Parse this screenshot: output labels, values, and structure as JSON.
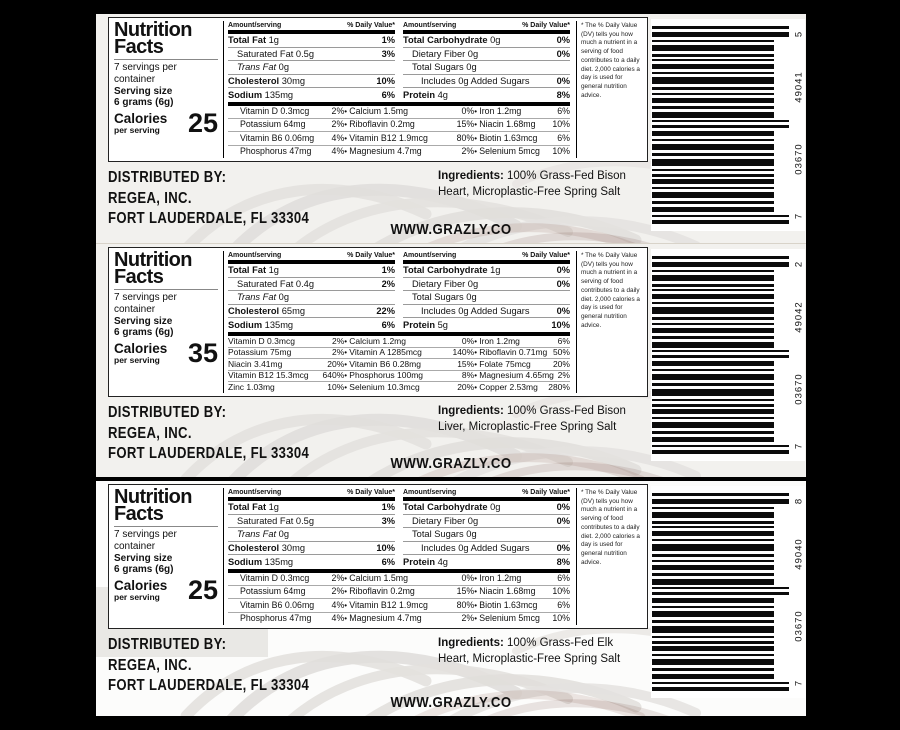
{
  "shared": {
    "website": "WWW.GRAZLY.CO",
    "distributor_lines": [
      "DISTRIBUTED BY:",
      "REGEA, INC.",
      "FORT LAUDERDALE, FL 33304"
    ],
    "ingredients_label": "Ingredients:",
    "footnote": "* The % Daily Value (DV) tells you how much a nutrient in a serving of food contributes to a daily diet. 2,000 calories a day is used for general nutrition advice.",
    "panel": {
      "title_line1": "Nutrition",
      "title_line2": "Facts",
      "servings": "7 servings per container",
      "serving_size_label": "Serving size",
      "serving_size_value": "6 grams (6g)",
      "calories_label": "Calories",
      "calories_sub": "per serving",
      "amount_header": "Amount/serving",
      "dv_header": "% Daily Value*"
    }
  },
  "colors": {
    "frame": "#000000",
    "strip_bg": "#f2f1ee",
    "strip3_bg": "#fcfcfb",
    "bar_color": "#0b0b0b"
  },
  "labels": [
    {
      "bg": "#f2f1ee",
      "calories": "25",
      "macros_left": [
        {
          "name": "Total Fat",
          "amount": "1g",
          "dv": "1%",
          "style": "bold"
        },
        {
          "name": "Saturated Fat",
          "amount": "0.5g",
          "dv": "3%",
          "style": "indent"
        },
        {
          "name": "Trans Fat",
          "amount": "0g",
          "dv": "",
          "style": "italic"
        },
        {
          "name": "Cholesterol",
          "amount": "30mg",
          "dv": "10%",
          "style": "bold"
        },
        {
          "name": "Sodium",
          "amount": "135mg",
          "dv": "6%",
          "style": "bold"
        }
      ],
      "macros_right": [
        {
          "name": "Total Carbohydrate",
          "amount": "0g",
          "dv": "0%",
          "style": "bold"
        },
        {
          "name": "Dietary Fiber",
          "amount": "0g",
          "dv": "0%",
          "style": "indent"
        },
        {
          "name": "Total Sugars",
          "amount": "0g",
          "dv": "",
          "style": "indent"
        },
        {
          "name": "Includes 0g Added Sugars",
          "amount": "",
          "dv": "0%",
          "style": "indent2"
        },
        {
          "name": "Protein",
          "amount": "4g",
          "dv": "8%",
          "style": "bold"
        }
      ],
      "micros": [
        [
          "Vitamin D 0.3mcg",
          "2%",
          "Calcium 1.5mg",
          "0%",
          "Iron 1.2mg",
          "6%"
        ],
        [
          "Potassium 64mg",
          "2%",
          "Riboflavin 0.2mg",
          "15%",
          "Niacin 1.68mg",
          "10%"
        ],
        [
          "Vitamin B6 0.06mg",
          "4%",
          "Vitamin B12 1.9mcg",
          "80%",
          "Biotin 1.63mcg",
          "6%"
        ],
        [
          "Phosphorus 47mg",
          "4%",
          "Magnesium 4.7mg",
          "2%",
          "Selenium 5mcg",
          "10%"
        ]
      ],
      "ingredients": "100% Grass-Fed Bison Heart, Microplastic-Free Spring Salt",
      "barcode": {
        "digit_top": "5",
        "group_upper": "49041",
        "group_lower": "03670",
        "digit_bottom": "7"
      }
    },
    {
      "bg": "#f2f1ee",
      "calories": "35",
      "macros_left": [
        {
          "name": "Total Fat",
          "amount": "1g",
          "dv": "1%",
          "style": "bold"
        },
        {
          "name": "Saturated Fat",
          "amount": "0.4g",
          "dv": "2%",
          "style": "indent"
        },
        {
          "name": "Trans Fat",
          "amount": "0g",
          "dv": "",
          "style": "italic"
        },
        {
          "name": "Cholesterol",
          "amount": "65mg",
          "dv": "22%",
          "style": "bold"
        },
        {
          "name": "Sodium",
          "amount": "135mg",
          "dv": "6%",
          "style": "bold"
        }
      ],
      "macros_right": [
        {
          "name": "Total Carbohydrate",
          "amount": "1g",
          "dv": "0%",
          "style": "bold"
        },
        {
          "name": "Dietary Fiber",
          "amount": "0g",
          "dv": "0%",
          "style": "indent"
        },
        {
          "name": "Total Sugars",
          "amount": "0g",
          "dv": "",
          "style": "indent"
        },
        {
          "name": "Includes 0g Added Sugars",
          "amount": "",
          "dv": "0%",
          "style": "indent2"
        },
        {
          "name": "Protein",
          "amount": "5g",
          "dv": "10%",
          "style": "bold"
        }
      ],
      "micros": [
        [
          "Vitamin D 0.3mcg",
          "2%",
          "Calcium 1.2mg",
          "0%",
          "Iron 1.2mg",
          "6%"
        ],
        [
          "Potassium 75mg",
          "2%",
          "Vitamin A 1285mcg",
          "140%",
          "Riboflavin 0.71mg",
          "50%"
        ],
        [
          "Niacin 3.41mg",
          "20%",
          "Vitamin B6 0.28mg",
          "15%",
          "Folate 75mcg",
          "20%"
        ],
        [
          "Vitamin B12 15.3mcg",
          "640%",
          "Phosphorus 100mg",
          "8%",
          "Magnesium 4.65mg",
          "2%"
        ],
        [
          "Zinc 1.03mg",
          "10%",
          "Selenium 10.3mcg",
          "20%",
          "Copper 2.53mg",
          "280%"
        ]
      ],
      "ingredients": "100% Grass-Fed Bison Liver, Microplastic-Free Spring Salt",
      "barcode": {
        "digit_top": "2",
        "group_upper": "49042",
        "group_lower": "03670",
        "digit_bottom": "7"
      }
    },
    {
      "bg": "#fcfcfb",
      "calories": "25",
      "macros_left": [
        {
          "name": "Total Fat",
          "amount": "1g",
          "dv": "1%",
          "style": "bold"
        },
        {
          "name": "Saturated Fat",
          "amount": "0.5g",
          "dv": "3%",
          "style": "indent"
        },
        {
          "name": "Trans Fat",
          "amount": "0g",
          "dv": "",
          "style": "italic"
        },
        {
          "name": "Cholesterol",
          "amount": "30mg",
          "dv": "10%",
          "style": "bold"
        },
        {
          "name": "Sodium",
          "amount": "135mg",
          "dv": "6%",
          "style": "bold"
        }
      ],
      "macros_right": [
        {
          "name": "Total Carbohydrate",
          "amount": "0g",
          "dv": "0%",
          "style": "bold"
        },
        {
          "name": "Dietary Fiber",
          "amount": "0g",
          "dv": "0%",
          "style": "indent"
        },
        {
          "name": "Total Sugars",
          "amount": "0g",
          "dv": "",
          "style": "indent"
        },
        {
          "name": "Includes 0g Added Sugars",
          "amount": "",
          "dv": "0%",
          "style": "indent2"
        },
        {
          "name": "Protein",
          "amount": "4g",
          "dv": "8%",
          "style": "bold"
        }
      ],
      "micros": [
        [
          "Vitamin D 0.3mcg",
          "2%",
          "Calcium 1.5mg",
          "0%",
          "Iron 1.2mg",
          "6%"
        ],
        [
          "Potassium 64mg",
          "2%",
          "Riboflavin 0.2mg",
          "15%",
          "Niacin 1.68mg",
          "10%"
        ],
        [
          "Vitamin B6 0.06mg",
          "4%",
          "Vitamin B12 1.9mcg",
          "80%",
          "Biotin 1.63mcg",
          "6%"
        ],
        [
          "Phosphorus 47mg",
          "4%",
          "Magnesium 4.7mg",
          "2%",
          "Selenium 5mcg",
          "10%"
        ]
      ],
      "ingredients": "100% Grass-Fed Elk Heart, Microplastic-Free Spring Salt",
      "barcode": {
        "digit_top": "8",
        "group_upper": "49040",
        "group_lower": "03670",
        "digit_bottom": "7"
      }
    }
  ]
}
